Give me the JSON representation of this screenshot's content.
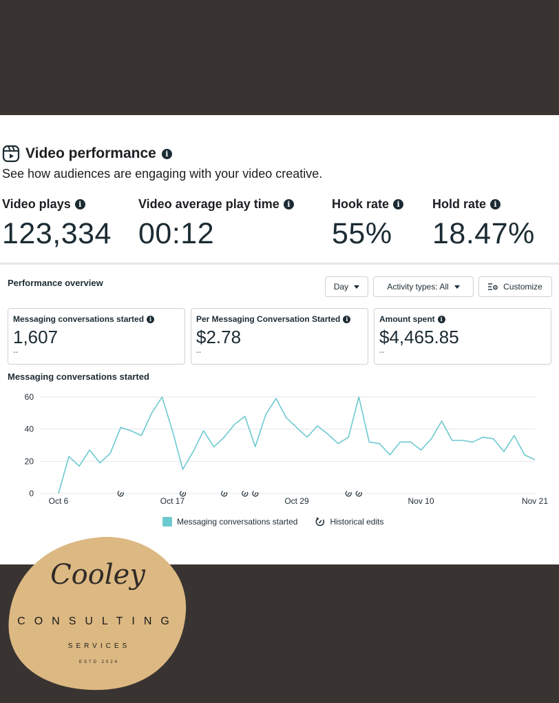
{
  "video_performance": {
    "title": "Video performance",
    "subtitle": "See how audiences are engaging with your video creative.",
    "metrics": [
      {
        "label": "Video plays",
        "value": "123,334"
      },
      {
        "label": "Video average play time",
        "value": "00:12"
      },
      {
        "label": "Hook rate",
        "value": "55%"
      },
      {
        "label": "Hold rate",
        "value": "18.47%"
      }
    ]
  },
  "overview": {
    "title": "Performance overview",
    "day_button": "Day",
    "activity_button": "Activity types: All",
    "customize_button": "Customize",
    "cards": [
      {
        "label": "Messaging conversations started",
        "value": "1,607",
        "compare": "--"
      },
      {
        "label": "Per Messaging Conversation Started",
        "value": "$2.78",
        "compare": "--"
      },
      {
        "label": "Amount spent",
        "value": "$4,465.85",
        "compare": "--"
      }
    ]
  },
  "chart_data": {
    "type": "line",
    "title": "Messaging conversations started",
    "xlabel": "",
    "ylabel": "",
    "ylim": [
      0,
      60
    ],
    "yticks": [
      0,
      20,
      40,
      60
    ],
    "x_ticks": [
      {
        "label": "Oct 6",
        "index": 0
      },
      {
        "label": "Oct 17",
        "index": 11
      },
      {
        "label": "Oct 29",
        "index": 23
      },
      {
        "label": "Nov 10",
        "index": 35
      },
      {
        "label": "Nov 21",
        "index": 46
      }
    ],
    "series": [
      {
        "name": "Messaging conversations started",
        "color": "#6cc9cf",
        "values": [
          0,
          23,
          17,
          27,
          19,
          25,
          41,
          39,
          36,
          50,
          60,
          39,
          15,
          26,
          39,
          29,
          35,
          43,
          48,
          29,
          49,
          59,
          47,
          41,
          35,
          42,
          37,
          31,
          35,
          60,
          32,
          31,
          24,
          32,
          32,
          27,
          34,
          45,
          33,
          33,
          32,
          35,
          34,
          26,
          36,
          24,
          21
        ]
      }
    ],
    "historical_edits": [
      6,
      12,
      16,
      18,
      19,
      28,
      29
    ],
    "legend": [
      "Messaging conversations started",
      "Historical edits"
    ]
  },
  "logo": {
    "script": "Cooley",
    "line1": "CONSULTING",
    "line2": "SERVICES",
    "line3": "ESTD 2024"
  }
}
